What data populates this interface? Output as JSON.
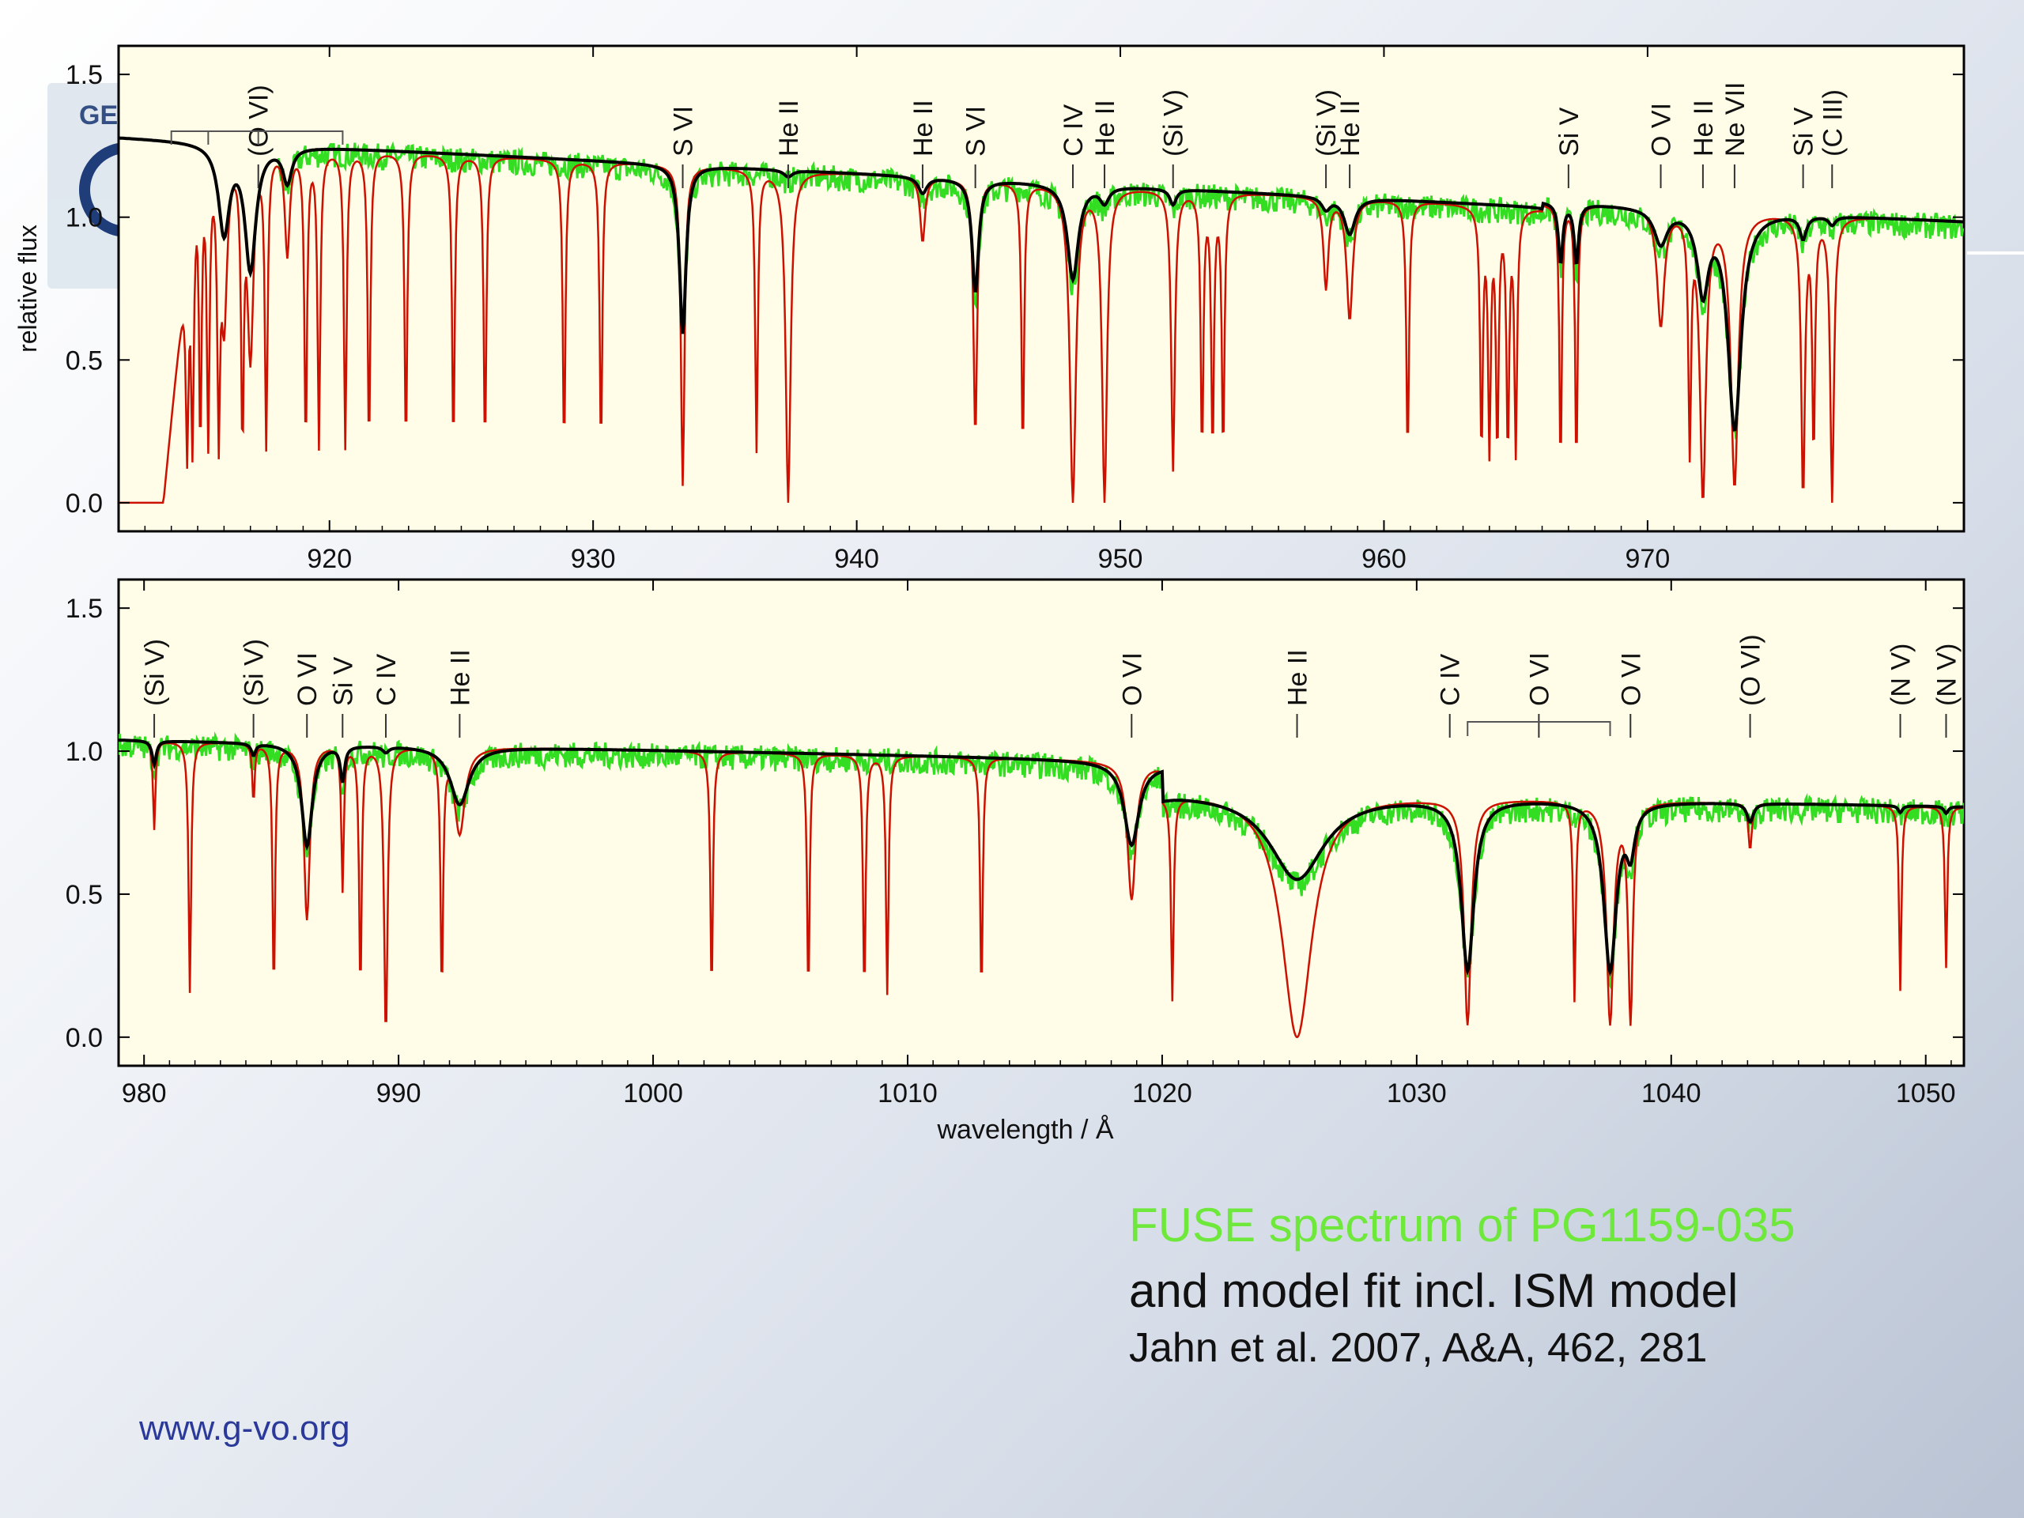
{
  "caption": {
    "title": "FUSE spectrum of PG1159-035",
    "subtitle": "and model fit incl. ISM model",
    "reference": "Jahn et al. 2007, A&A, 462, 281"
  },
  "site_url": "www.g-vo.org",
  "logo_text": "GER",
  "colors": {
    "observed": "#33dd22",
    "model_ism": "#cc1100",
    "model_photosphere": "#000000",
    "plot_background": "#fffde8"
  },
  "chart_data": [
    {
      "type": "line",
      "xlabel": "",
      "ylabel": "relative flux",
      "xlim": [
        912,
        982
      ],
      "ylim": [
        -0.1,
        1.6
      ],
      "xticks": [
        920,
        930,
        940,
        950,
        960,
        970
      ],
      "yticks": [
        "0.0",
        "0.5",
        "1.0",
        "1.5"
      ],
      "grid": false,
      "line_labels": [
        {
          "text": "(O VI)",
          "x": 917.3
        },
        {
          "text": "S VI",
          "x": 933.4
        },
        {
          "text": "He II",
          "x": 937.4
        },
        {
          "text": "He II",
          "x": 942.5
        },
        {
          "text": "S VI",
          "x": 944.5
        },
        {
          "text": "C IV",
          "x": 948.2
        },
        {
          "text": "He II",
          "x": 949.4
        },
        {
          "text": "(Si V)",
          "x": 952.0
        },
        {
          "text": "(Si V)",
          "x": 957.8
        },
        {
          "text": "He II",
          "x": 958.7
        },
        {
          "text": "Si V",
          "x": 967.0
        },
        {
          "text": "O VI",
          "x": 970.5
        },
        {
          "text": "He II",
          "x": 972.1
        },
        {
          "text": "Ne VII",
          "x": 973.3
        },
        {
          "text": "Si V",
          "x": 975.9
        },
        {
          "text": "(C III)",
          "x": 977.0
        }
      ]
    },
    {
      "type": "line",
      "xlabel": "wavelength / Å",
      "ylabel": "",
      "xlim": [
        979,
        1051.5
      ],
      "ylim": [
        -0.1,
        1.6
      ],
      "xticks": [
        980,
        990,
        1000,
        1010,
        1020,
        1030,
        1040,
        1050
      ],
      "yticks": [
        "0.0",
        "0.5",
        "1.0",
        "1.5"
      ],
      "grid": false,
      "line_labels": [
        {
          "text": "(Si V)",
          "x": 980.4
        },
        {
          "text": "(Si V)",
          "x": 984.3
        },
        {
          "text": "O VI",
          "x": 986.4
        },
        {
          "text": "Si V",
          "x": 987.8
        },
        {
          "text": "C IV",
          "x": 989.5
        },
        {
          "text": "He II",
          "x": 992.4
        },
        {
          "text": "O VI",
          "x": 1018.8
        },
        {
          "text": "He II",
          "x": 1025.3
        },
        {
          "text": "C IV",
          "x": 1031.3
        },
        {
          "text": "O VI",
          "x": 1034.8
        },
        {
          "text": "O VI",
          "x": 1038.4
        },
        {
          "text": "(O VI)",
          "x": 1043.1
        },
        {
          "text": "(N V)",
          "x": 1049.0
        },
        {
          "text": "(N V)",
          "x": 1050.8
        }
      ]
    }
  ]
}
